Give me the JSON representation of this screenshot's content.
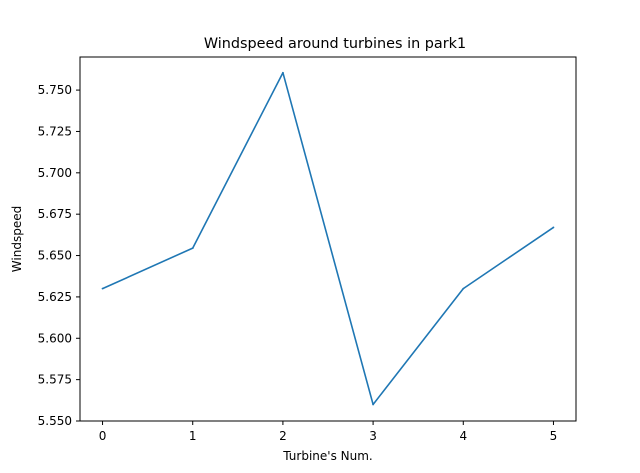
{
  "chart_data": {
    "type": "line",
    "title": "Windspeed around turbines in park1",
    "xlabel": "Turbine's Num.",
    "ylabel": "Windspeed",
    "x": [
      0,
      1,
      2,
      3,
      4,
      5
    ],
    "series": [
      {
        "values": [
          5.63,
          5.6545,
          5.7605,
          5.56,
          5.63,
          5.667
        ],
        "color": "#1f77b4"
      }
    ],
    "xticks": [
      "0",
      "1",
      "2",
      "3",
      "4",
      "5"
    ],
    "yticks": [
      "5.550",
      "5.575",
      "5.600",
      "5.625",
      "5.650",
      "5.675",
      "5.700",
      "5.725",
      "5.750"
    ],
    "xlim": [
      -0.25,
      5.25
    ],
    "ylim": [
      5.55,
      5.77
    ],
    "grid": false
  }
}
